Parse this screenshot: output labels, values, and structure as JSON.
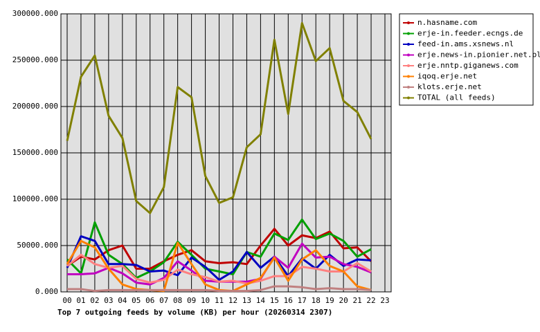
{
  "chart_data": {
    "type": "line",
    "xlabel": "Top 7 outgoing feeds by volume (KB) per hour (20260314 2307)",
    "categories": [
      "00",
      "01",
      "02",
      "03",
      "04",
      "05",
      "06",
      "07",
      "08",
      "09",
      "10",
      "11",
      "12",
      "13",
      "14",
      "15",
      "16",
      "17",
      "18",
      "19",
      "20",
      "21",
      "22",
      "23"
    ],
    "ylim": [
      0,
      300000
    ],
    "yticks": [
      {
        "value": 0,
        "label": "0.000"
      },
      {
        "value": 50000,
        "label": "50000.000"
      },
      {
        "value": 100000,
        "label": "100000.000"
      },
      {
        "value": 150000,
        "label": "150000.000"
      },
      {
        "value": 200000,
        "label": "200000.000"
      },
      {
        "value": 250000,
        "label": "250000.000"
      },
      {
        "value": 300000,
        "label": "300000.000"
      }
    ],
    "grid": true,
    "legend": "right",
    "series": [
      {
        "name": "n.hasname.com",
        "color": "#c00000",
        "values": [
          28000,
          38000,
          35000,
          45000,
          50000,
          25000,
          25000,
          33000,
          40000,
          45000,
          33000,
          31000,
          32000,
          30000,
          50000,
          68000,
          50000,
          61000,
          58000,
          65000,
          47000,
          48000,
          33000,
          null
        ]
      },
      {
        "name": "erje-in.feeder.ecngs.de",
        "color": "#00a000",
        "values": [
          35000,
          20000,
          75000,
          40000,
          30000,
          15000,
          22000,
          32000,
          54000,
          40000,
          25000,
          22000,
          19000,
          43000,
          38000,
          63000,
          56000,
          78000,
          57000,
          63000,
          55000,
          38000,
          46000,
          null
        ]
      },
      {
        "name": "feed-in.ams.xsnews.nl",
        "color": "#0000c0",
        "values": [
          26000,
          60000,
          55000,
          30000,
          30000,
          29000,
          22000,
          23000,
          18000,
          37000,
          27000,
          13000,
          22000,
          43000,
          26000,
          38000,
          17000,
          36000,
          25000,
          40000,
          28000,
          35000,
          34000,
          null
        ]
      },
      {
        "name": "erje.news-in.pionier.net.pl",
        "color": "#c000c0",
        "values": [
          19000,
          19000,
          20000,
          26000,
          20000,
          10000,
          8000,
          15000,
          33000,
          23000,
          12000,
          11000,
          11000,
          11000,
          14000,
          38000,
          26000,
          52000,
          37000,
          38000,
          30000,
          27000,
          21000,
          null
        ]
      },
      {
        "name": "erje.nntp.giganews.com",
        "color": "#ff8080",
        "values": [
          28000,
          40000,
          30000,
          26000,
          28000,
          14000,
          10000,
          13000,
          24000,
          19000,
          16000,
          11000,
          12000,
          9000,
          12000,
          17000,
          17000,
          27000,
          25000,
          22000,
          22000,
          31000,
          22000,
          null
        ]
      },
      {
        "name": "iqoq.erje.net",
        "color": "#ff8000",
        "values": [
          30000,
          55000,
          48000,
          25000,
          8000,
          3000,
          2000,
          1000,
          53000,
          30000,
          8000,
          2000,
          1000,
          8000,
          15000,
          37000,
          12000,
          35000,
          45000,
          28000,
          22000,
          6000,
          2000,
          null
        ]
      },
      {
        "name": "klots.erje.net",
        "color": "#c08080",
        "values": [
          3000,
          3000,
          1000,
          2000,
          2000,
          2000,
          2000,
          2000,
          2000,
          2000,
          2000,
          1000,
          1000,
          1000,
          2000,
          6000,
          6000,
          5000,
          3000,
          4000,
          3000,
          3000,
          2000,
          null
        ]
      },
      {
        "name": "TOTAL (all feeds)",
        "color": "#808000",
        "values": [
          163000,
          232000,
          255000,
          190000,
          166000,
          98000,
          85000,
          113000,
          221000,
          210000,
          125000,
          96000,
          102000,
          156000,
          170000,
          272000,
          192000,
          290000,
          249000,
          263000,
          206000,
          194000,
          165000,
          null
        ]
      }
    ]
  }
}
